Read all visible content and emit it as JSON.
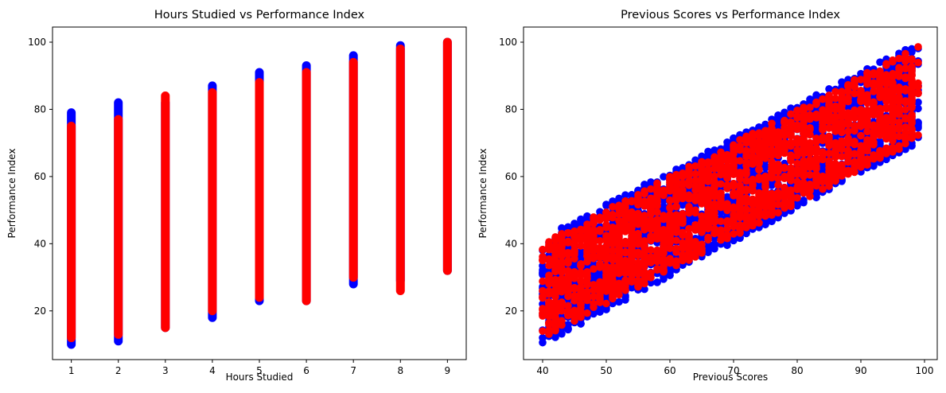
{
  "colors": {
    "blue_series": "#0000ff",
    "red_series": "#ff0000"
  },
  "chart_data": [
    {
      "type": "scatter",
      "title": "Hours Studied vs Performance Index",
      "xlabel": "Hours Studied",
      "ylabel": "Performance Index",
      "xlim": [
        0.6,
        9.4
      ],
      "ylim": [
        5.5,
        104.5
      ],
      "xticks": [
        1,
        2,
        3,
        4,
        5,
        6,
        7,
        8,
        9
      ],
      "yticks": [
        20,
        40,
        60,
        80,
        100
      ],
      "grid": false,
      "legend": "none",
      "series": [
        {
          "color": "#0000ff",
          "kind": "vertical_ranges",
          "points": [
            {
              "x": 1,
              "y_min": 10,
              "y_max": 79
            },
            {
              "x": 2,
              "y_min": 11,
              "y_max": 82
            },
            {
              "x": 3,
              "y_min": 15,
              "y_max": 82
            },
            {
              "x": 4,
              "y_min": 18,
              "y_max": 87
            },
            {
              "x": 5,
              "y_min": 23,
              "y_max": 91
            },
            {
              "x": 6,
              "y_min": 23,
              "y_max": 93
            },
            {
              "x": 7,
              "y_min": 28,
              "y_max": 96
            },
            {
              "x": 8,
              "y_min": 29,
              "y_max": 99
            },
            {
              "x": 9,
              "y_min": 32,
              "y_max": 100
            }
          ]
        },
        {
          "color": "#ff0000",
          "kind": "vertical_ranges",
          "points": [
            {
              "x": 1,
              "y_min": 12,
              "y_max": 75
            },
            {
              "x": 2,
              "y_min": 13,
              "y_max": 77
            },
            {
              "x": 3,
              "y_min": 15,
              "y_max": 84
            },
            {
              "x": 4,
              "y_min": 20,
              "y_max": 85
            },
            {
              "x": 5,
              "y_min": 24,
              "y_max": 88
            },
            {
              "x": 6,
              "y_min": 23,
              "y_max": 91
            },
            {
              "x": 7,
              "y_min": 30,
              "y_max": 94
            },
            {
              "x": 8,
              "y_min": 26,
              "y_max": 98
            },
            {
              "x": 9,
              "y_min": 32,
              "y_max": 100
            }
          ]
        }
      ]
    },
    {
      "type": "scatter",
      "title": "Previous Scores vs Performance Index",
      "xlabel": "Previous Scores",
      "ylabel": "Performance Index",
      "xlim": [
        37,
        102
      ],
      "ylim": [
        5.5,
        104.5
      ],
      "xticks": [
        40,
        50,
        60,
        70,
        80,
        90,
        100
      ],
      "yticks": [
        20,
        40,
        60,
        80,
        100
      ],
      "grid": false,
      "legend": "none",
      "series": [
        {
          "color": "#0000ff",
          "kind": "band",
          "band": [
            {
              "x": 40,
              "y_min": 10,
              "y_max": 42
            },
            {
              "x": 99,
              "y_min": 70,
              "y_max": 100
            }
          ]
        },
        {
          "color": "#ff0000",
          "kind": "band",
          "band": [
            {
              "x": 40,
              "y_min": 12,
              "y_max": 40
            },
            {
              "x": 99,
              "y_min": 71,
              "y_max": 99
            }
          ]
        }
      ]
    }
  ]
}
